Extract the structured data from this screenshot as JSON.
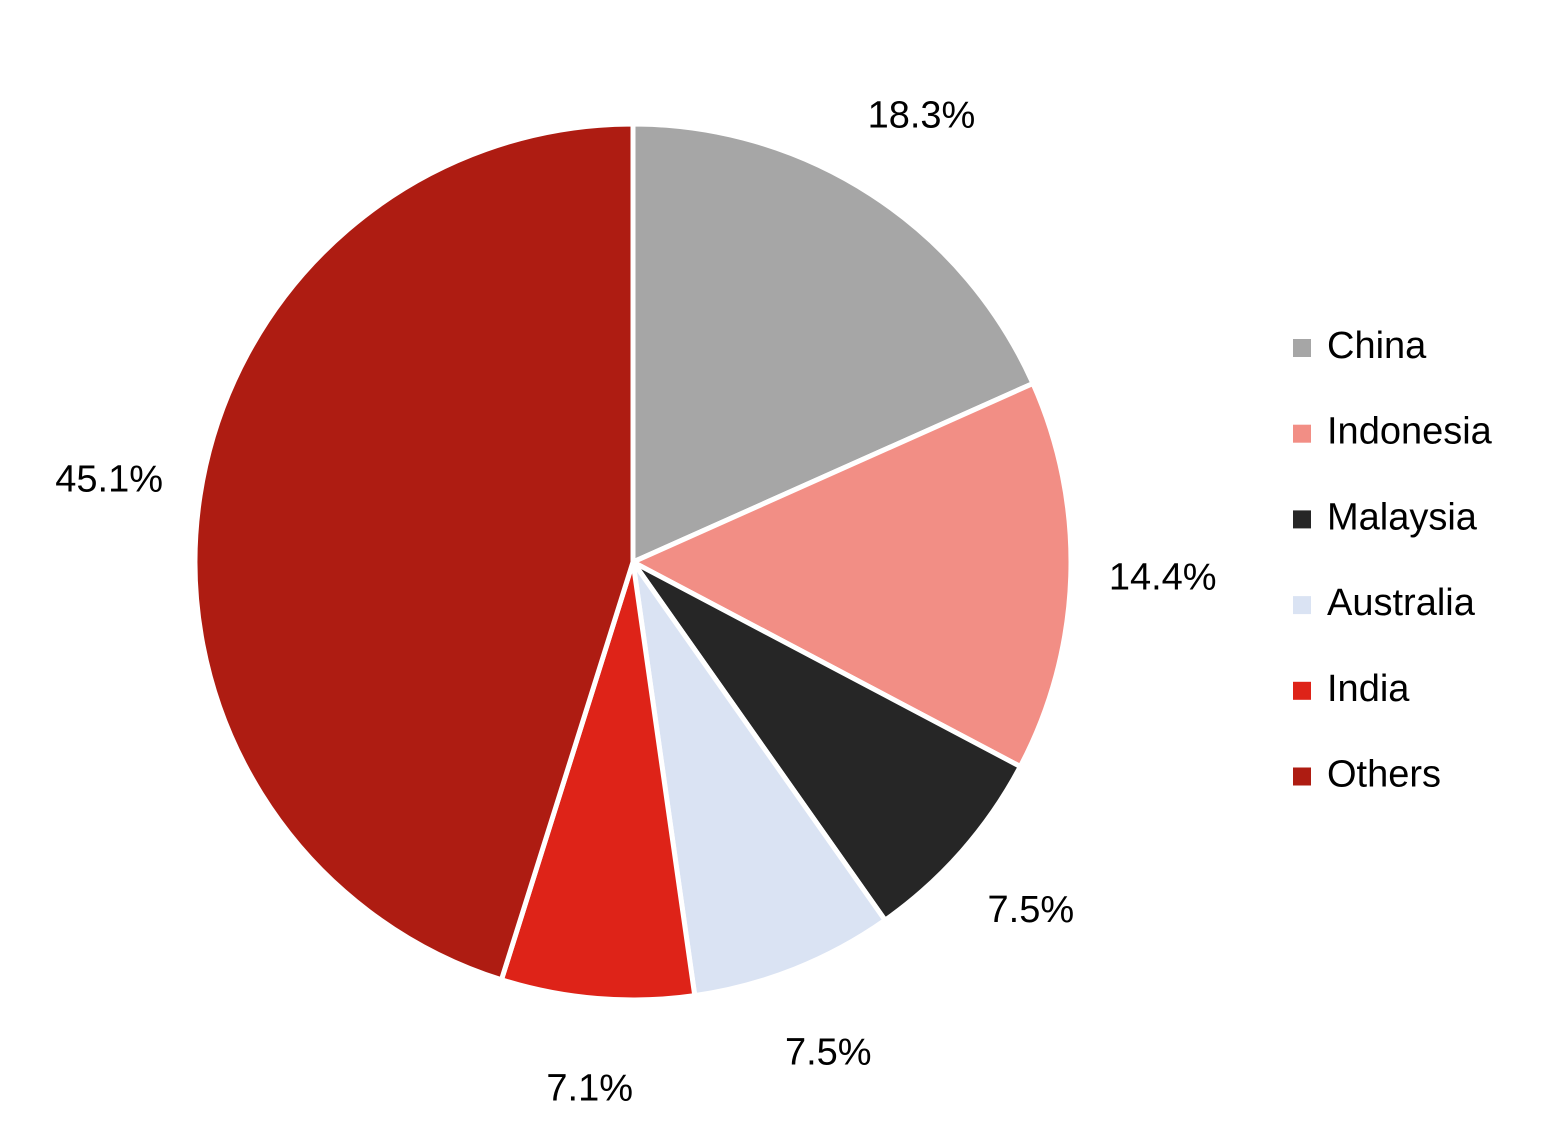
{
  "chart_data": {
    "type": "pie",
    "categories": [
      "China",
      "Indonesia",
      "Malaysia",
      "Australia",
      "India",
      "Others"
    ],
    "values": [
      18.3,
      14.4,
      7.5,
      7.5,
      7.1,
      45.1
    ],
    "value_labels": [
      "18.3%",
      "14.4%",
      "7.5%",
      "7.5%",
      "7.1%",
      "45.1%"
    ],
    "colors": [
      "#a6a6a6",
      "#f28e85",
      "#262626",
      "#dae3f3",
      "#de2318",
      "#ae1c12"
    ],
    "legend": "right"
  }
}
